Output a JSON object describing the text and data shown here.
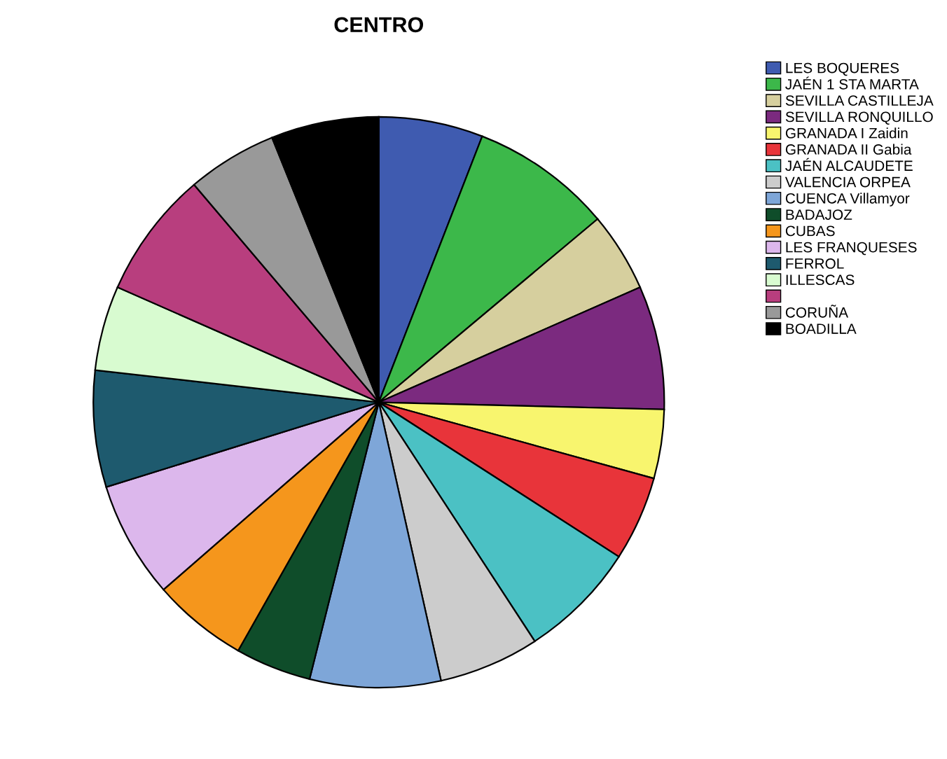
{
  "chart_data": {
    "type": "pie",
    "title": "CENTRO",
    "categories": [
      "LES BOQUERES",
      "JAÉN 1 STA MARTA",
      "SEVILLA CASTILLEJA",
      "SEVILLA RONQUILLO",
      "GRANADA I Zaidin",
      "GRANADA II Gabia",
      "JAÉN ALCAUDETE",
      "VALENCIA ORPEA",
      "CUENCA Villamyor",
      "BADAJOZ",
      "CUBAS",
      "LES FRANQUESES",
      "FERROL",
      "ILLESCAS",
      null,
      "CORUÑA",
      "BOADILLA"
    ],
    "values": [
      5.9,
      8.0,
      4.5,
      7.0,
      3.9,
      4.8,
      6.7,
      5.7,
      7.4,
      4.3,
      5.4,
      6.6,
      6.6,
      4.8,
      7.2,
      5.1,
      6.1
    ],
    "colors": [
      "#3f5bb0",
      "#3cb84a",
      "#d6cf9e",
      "#7b2a7f",
      "#f8f56e",
      "#e8343a",
      "#4bc1c4",
      "#cccccc",
      "#7ea6d8",
      "#0f4d2a",
      "#f5961c",
      "#dcb7ec",
      "#1e5a6e",
      "#d8fbd0",
      "#b83e7e",
      "#999999",
      "#000000"
    ],
    "legend": "top right"
  }
}
